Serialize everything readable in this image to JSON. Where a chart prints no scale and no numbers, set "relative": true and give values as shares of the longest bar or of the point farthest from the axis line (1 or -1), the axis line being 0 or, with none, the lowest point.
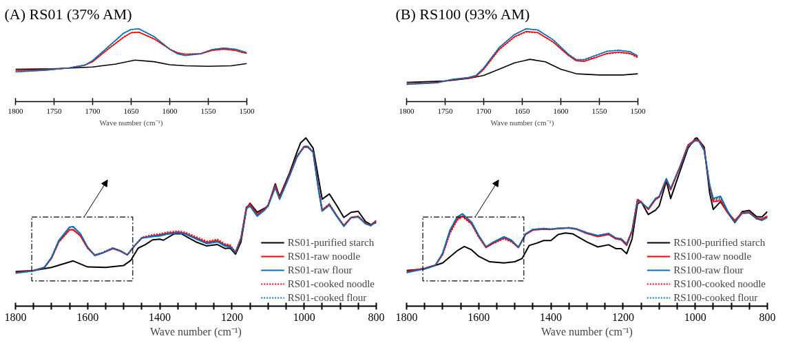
{
  "chart_data": [
    {
      "type": "line",
      "xlabel": "Wave number (cm⁻¹)",
      "relative": true,
      "legend": "bottom right",
      "xlim": [
        1800,
        800
      ],
      "xticks": [
        1800,
        {
          "value": 1750,
          "label": null
        },
        {
          "value": 1700,
          "label": null
        },
        {
          "value": 1650,
          "label": null
        },
        1600,
        {
          "value": 1550,
          "label": null
        },
        {
          "value": 1500,
          "label": null
        },
        {
          "value": 1450,
          "label": null
        },
        1400,
        {
          "value": 1350,
          "label": null
        },
        {
          "value": 1300,
          "label": null
        },
        {
          "value": 1250,
          "label": null
        },
        1200,
        {
          "value": 1150,
          "label": null
        },
        {
          "value": 1100,
          "label": null
        },
        {
          "value": 1050,
          "label": null
        },
        1000,
        {
          "value": 950,
          "label": null
        },
        {
          "value": 900,
          "label": null
        },
        {
          "value": 850,
          "label": null
        },
        800
      ],
      "series": [
        {
          "name": "RS01-purified starch",
          "color": "#000000",
          "line_style": "solid",
          "x": [
            1800,
            1750,
            1700,
            1640,
            1600,
            1550,
            1500,
            1480,
            1460,
            1440,
            1420,
            1400,
            1390,
            1360,
            1340,
            1320,
            1300,
            1270,
            1240,
            1220,
            1205,
            1190,
            1175,
            1160,
            1150,
            1130,
            1110,
            1100,
            1080,
            1068,
            1040,
            1020,
            1010,
            995,
            975,
            960,
            950,
            930,
            910,
            890,
            870,
            850,
            830,
            815,
            800
          ],
          "values": [
            0.206,
            0.212,
            0.23,
            0.269,
            0.233,
            0.23,
            0.242,
            0.273,
            0.345,
            0.366,
            0.394,
            0.398,
            0.392,
            0.43,
            0.43,
            0.406,
            0.382,
            0.358,
            0.366,
            0.343,
            0.345,
            0.309,
            0.382,
            0.576,
            0.612,
            0.558,
            0.582,
            0.594,
            0.727,
            0.651,
            0.794,
            0.915,
            0.97,
            1.0,
            0.939,
            0.758,
            0.636,
            0.667,
            0.6,
            0.527,
            0.558,
            0.564,
            0.503,
            0.485,
            0.497
          ]
        },
        {
          "name": "RS01-raw noodle",
          "color": "#ff0000",
          "line_style": "solid",
          "x": [
            1800,
            1750,
            1720,
            1700,
            1680,
            1650,
            1640,
            1620,
            1600,
            1580,
            1560,
            1530,
            1510,
            1490,
            1470,
            1450,
            1420,
            1400,
            1380,
            1350,
            1330,
            1300,
            1270,
            1240,
            1220,
            1205,
            1190,
            1175,
            1160,
            1150,
            1130,
            1110,
            1100,
            1080,
            1068,
            1040,
            1020,
            1000,
            990,
            975,
            960,
            950,
            930,
            910,
            890,
            870,
            850,
            830,
            815,
            800
          ],
          "values": [
            0.2,
            0.212,
            0.23,
            0.285,
            0.382,
            0.455,
            0.455,
            0.418,
            0.345,
            0.303,
            0.315,
            0.342,
            0.327,
            0.305,
            0.358,
            0.406,
            0.418,
            0.424,
            0.433,
            0.44,
            0.433,
            0.406,
            0.379,
            0.39,
            0.364,
            0.358,
            0.321,
            0.406,
            0.588,
            0.606,
            0.545,
            0.576,
            0.6,
            0.715,
            0.642,
            0.782,
            0.891,
            0.945,
            0.945,
            0.915,
            0.697,
            0.57,
            0.606,
            0.539,
            0.479,
            0.527,
            0.533,
            0.491,
            0.481,
            0.509
          ]
        },
        {
          "name": "RS01-raw flour",
          "color": "#0070c0",
          "line_style": "solid",
          "x": [
            1800,
            1750,
            1720,
            1700,
            1680,
            1650,
            1640,
            1620,
            1600,
            1580,
            1560,
            1530,
            1510,
            1490,
            1470,
            1450,
            1420,
            1400,
            1380,
            1350,
            1330,
            1300,
            1270,
            1240,
            1220,
            1205,
            1190,
            1175,
            1160,
            1150,
            1130,
            1110,
            1100,
            1080,
            1068,
            1040,
            1020,
            1000,
            990,
            975,
            960,
            950,
            930,
            910,
            890,
            870,
            850,
            830,
            815,
            800
          ],
          "values": [
            0.196,
            0.21,
            0.23,
            0.29,
            0.39,
            0.47,
            0.473,
            0.43,
            0.35,
            0.3,
            0.315,
            0.345,
            0.33,
            0.305,
            0.36,
            0.404,
            0.414,
            0.418,
            0.428,
            0.435,
            0.43,
            0.4,
            0.372,
            0.382,
            0.358,
            0.352,
            0.318,
            0.4,
            0.58,
            0.595,
            0.535,
            0.57,
            0.595,
            0.705,
            0.635,
            0.775,
            0.885,
            0.95,
            0.95,
            0.915,
            0.69,
            0.565,
            0.6,
            0.535,
            0.475,
            0.525,
            0.53,
            0.49,
            0.478,
            0.505
          ]
        },
        {
          "name": "RS01-cooked noodle",
          "color": "#ff0000",
          "line_style": "dotted",
          "x": [
            1800,
            1750,
            1720,
            1700,
            1680,
            1650,
            1640,
            1620,
            1600,
            1580,
            1560,
            1530,
            1510,
            1490,
            1470,
            1450,
            1420,
            1400,
            1380,
            1350,
            1330,
            1300,
            1270,
            1240,
            1220,
            1205,
            1190,
            1175,
            1160,
            1150,
            1130,
            1110,
            1100,
            1080,
            1068,
            1040,
            1020,
            1000,
            990,
            975,
            960,
            950,
            930,
            910,
            890,
            870,
            850,
            830,
            815,
            800
          ],
          "values": [
            0.2,
            0.212,
            0.23,
            0.285,
            0.38,
            0.452,
            0.452,
            0.418,
            0.345,
            0.305,
            0.318,
            0.345,
            0.33,
            0.305,
            0.36,
            0.408,
            0.425,
            0.43,
            0.44,
            0.447,
            0.44,
            0.413,
            0.386,
            0.397,
            0.371,
            0.364,
            0.321,
            0.406,
            0.588,
            0.606,
            0.548,
            0.578,
            0.602,
            0.718,
            0.645,
            0.785,
            0.895,
            0.95,
            0.95,
            0.918,
            0.7,
            0.572,
            0.608,
            0.54,
            0.48,
            0.528,
            0.535,
            0.493,
            0.483,
            0.51
          ]
        },
        {
          "name": "RS01-cooked flour",
          "color": "#0070c0",
          "line_style": "dotted",
          "x": [
            1800,
            1750,
            1720,
            1700,
            1680,
            1650,
            1640,
            1620,
            1600,
            1580,
            1560,
            1530,
            1510,
            1490,
            1470,
            1450,
            1420,
            1400,
            1380,
            1350,
            1330,
            1300,
            1270,
            1240,
            1220,
            1205,
            1190,
            1175,
            1160,
            1150,
            1130,
            1110,
            1100,
            1080,
            1068,
            1040,
            1020,
            1000,
            990,
            975,
            960,
            950,
            930,
            910,
            890,
            870,
            850,
            830,
            815,
            800
          ],
          "values": [
            0.196,
            0.21,
            0.23,
            0.29,
            0.388,
            0.468,
            0.47,
            0.43,
            0.35,
            0.302,
            0.318,
            0.347,
            0.33,
            0.307,
            0.36,
            0.406,
            0.418,
            0.422,
            0.432,
            0.438,
            0.432,
            0.403,
            0.376,
            0.386,
            0.36,
            0.354,
            0.318,
            0.4,
            0.582,
            0.597,
            0.537,
            0.572,
            0.597,
            0.708,
            0.638,
            0.778,
            0.888,
            0.948,
            0.948,
            0.915,
            0.692,
            0.567,
            0.602,
            0.537,
            0.475,
            0.526,
            0.531,
            0.49,
            0.479,
            0.506
          ]
        }
      ]
    },
    {
      "type": "line",
      "title": "(A) RS01 (37% AM)",
      "xlabel": "Wave number (cm⁻¹)",
      "relative": true,
      "xlim": [
        1800,
        1500
      ],
      "xticks": [
        1800,
        1750,
        1700,
        1650,
        1600,
        1550,
        1500
      ],
      "series": [
        {
          "color": "#000000",
          "line_style": "solid",
          "x": [
            1800,
            1750,
            1700,
            1670,
            1645,
            1620,
            1600,
            1580,
            1550,
            1520,
            1500
          ],
          "values": [
            0.444,
            0.45,
            0.475,
            0.516,
            0.569,
            0.547,
            0.506,
            0.491,
            0.484,
            0.491,
            0.522
          ]
        },
        {
          "color": "#ff0000",
          "line_style": "solid",
          "x": [
            1800,
            1760,
            1730,
            1710,
            1700,
            1680,
            1660,
            1650,
            1640,
            1620,
            1600,
            1590,
            1580,
            1560,
            1545,
            1530,
            1515,
            1505,
            1500
          ],
          "values": [
            0.428,
            0.438,
            0.463,
            0.5,
            0.547,
            0.719,
            0.881,
            0.944,
            0.953,
            0.859,
            0.719,
            0.672,
            0.65,
            0.656,
            0.703,
            0.719,
            0.703,
            0.672,
            0.663
          ]
        },
        {
          "color": "#0070c0",
          "line_style": "solid",
          "x": [
            1800,
            1760,
            1730,
            1710,
            1700,
            1680,
            1660,
            1650,
            1640,
            1620,
            1600,
            1590,
            1580,
            1560,
            1545,
            1530,
            1515,
            1505,
            1500
          ],
          "values": [
            0.406,
            0.431,
            0.463,
            0.5,
            0.563,
            0.75,
            0.938,
            0.991,
            1.0,
            0.891,
            0.719,
            0.656,
            0.631,
            0.656,
            0.713,
            0.734,
            0.719,
            0.688,
            0.672
          ]
        },
        {
          "color": "#ff0000",
          "line_style": "dotted",
          "x": [
            1800,
            1760,
            1730,
            1710,
            1700,
            1680,
            1660,
            1650,
            1640,
            1620,
            1600,
            1590,
            1580,
            1560,
            1545,
            1530,
            1515,
            1505,
            1500
          ],
          "values": [
            0.425,
            0.436,
            0.463,
            0.503,
            0.55,
            0.722,
            0.884,
            0.947,
            0.955,
            0.862,
            0.72,
            0.672,
            0.652,
            0.658,
            0.705,
            0.722,
            0.706,
            0.675,
            0.665
          ]
        },
        {
          "color": "#0070c0",
          "line_style": "dotted",
          "x": [
            1800,
            1760,
            1730,
            1710,
            1700,
            1680,
            1660,
            1650,
            1640,
            1620,
            1600,
            1590,
            1580,
            1560,
            1545,
            1530,
            1515,
            1505,
            1500
          ],
          "values": [
            0.41,
            0.433,
            0.463,
            0.502,
            0.56,
            0.745,
            0.935,
            0.988,
            0.997,
            0.89,
            0.719,
            0.658,
            0.634,
            0.658,
            0.715,
            0.736,
            0.722,
            0.69,
            0.674
          ]
        }
      ]
    },
    {
      "type": "line",
      "xlabel": "Wave number (cm⁻¹)",
      "relative": true,
      "legend": "bottom right",
      "xlim": [
        1800,
        800
      ],
      "xticks": [
        1800,
        {
          "value": 1750,
          "label": null
        },
        {
          "value": 1700,
          "label": null
        },
        {
          "value": 1650,
          "label": null
        },
        1600,
        {
          "value": 1550,
          "label": null
        },
        {
          "value": 1500,
          "label": null
        },
        {
          "value": 1450,
          "label": null
        },
        1400,
        {
          "value": 1350,
          "label": null
        },
        {
          "value": 1300,
          "label": null
        },
        {
          "value": 1250,
          "label": null
        },
        1200,
        {
          "value": 1150,
          "label": null
        },
        {
          "value": 1100,
          "label": null
        },
        {
          "value": 1050,
          "label": null
        },
        1000,
        {
          "value": 950,
          "label": null
        },
        {
          "value": 900,
          "label": null
        },
        {
          "value": 850,
          "label": null
        },
        800
      ],
      "series": [
        {
          "name": "RS100-purified starch",
          "color": "#000000",
          "line_style": "solid",
          "x": [
            1800,
            1750,
            1700,
            1660,
            1640,
            1620,
            1600,
            1570,
            1530,
            1500,
            1480,
            1460,
            1440,
            1420,
            1400,
            1380,
            1360,
            1340,
            1320,
            1300,
            1270,
            1240,
            1220,
            1205,
            1190,
            1175,
            1160,
            1150,
            1130,
            1110,
            1100,
            1080,
            1068,
            1040,
            1020,
            1000,
            995,
            975,
            960,
            950,
            930,
            910,
            890,
            870,
            850,
            830,
            815,
            800
          ],
          "values": [
            0.212,
            0.221,
            0.257,
            0.329,
            0.355,
            0.335,
            0.296,
            0.264,
            0.257,
            0.264,
            0.283,
            0.361,
            0.374,
            0.39,
            0.39,
            0.426,
            0.435,
            0.43,
            0.406,
            0.381,
            0.352,
            0.365,
            0.342,
            0.342,
            0.312,
            0.4,
            0.608,
            0.621,
            0.545,
            0.571,
            0.595,
            0.744,
            0.64,
            0.816,
            0.939,
            0.997,
            1.0,
            0.945,
            0.673,
            0.575,
            0.621,
            0.556,
            0.497,
            0.562,
            0.569,
            0.532,
            0.53,
            0.562
          ]
        },
        {
          "name": "RS100-raw noodle",
          "color": "#ff0000",
          "line_style": "solid",
          "x": [
            1800,
            1750,
            1720,
            1700,
            1680,
            1660,
            1645,
            1620,
            1600,
            1580,
            1560,
            1530,
            1510,
            1490,
            1470,
            1450,
            1420,
            1400,
            1380,
            1350,
            1330,
            1300,
            1270,
            1240,
            1220,
            1205,
            1190,
            1175,
            1160,
            1150,
            1130,
            1110,
            1100,
            1080,
            1068,
            1040,
            1020,
            1000,
            990,
            975,
            960,
            950,
            930,
            910,
            890,
            870,
            850,
            830,
            815,
            800
          ],
          "values": [
            0.205,
            0.225,
            0.244,
            0.309,
            0.439,
            0.517,
            0.536,
            0.491,
            0.413,
            0.348,
            0.374,
            0.406,
            0.387,
            0.348,
            0.426,
            0.452,
            0.458,
            0.456,
            0.461,
            0.465,
            0.458,
            0.432,
            0.413,
            0.426,
            0.4,
            0.394,
            0.361,
            0.445,
            0.634,
            0.621,
            0.575,
            0.634,
            0.647,
            0.751,
            0.692,
            0.842,
            0.958,
            0.99,
            0.987,
            0.931,
            0.712,
            0.621,
            0.627,
            0.556,
            0.51,
            0.556,
            0.558,
            0.523,
            0.517,
            0.536
          ]
        },
        {
          "name": "RS100-raw flour",
          "color": "#0070c0",
          "line_style": "solid",
          "x": [
            1800,
            1750,
            1720,
            1700,
            1680,
            1660,
            1645,
            1620,
            1600,
            1580,
            1560,
            1530,
            1510,
            1490,
            1470,
            1450,
            1420,
            1400,
            1380,
            1350,
            1330,
            1300,
            1270,
            1240,
            1220,
            1205,
            1190,
            1175,
            1160,
            1150,
            1130,
            1110,
            1100,
            1080,
            1068,
            1040,
            1020,
            1000,
            990,
            975,
            960,
            950,
            930,
            910,
            890,
            870,
            850,
            830,
            815,
            800
          ],
          "values": [
            0.2,
            0.222,
            0.244,
            0.315,
            0.45,
            0.53,
            0.549,
            0.5,
            0.42,
            0.352,
            0.38,
            0.413,
            0.393,
            0.35,
            0.43,
            0.456,
            0.462,
            0.458,
            0.463,
            0.466,
            0.46,
            0.436,
            0.42,
            0.432,
            0.405,
            0.4,
            0.37,
            0.45,
            0.625,
            0.615,
            0.58,
            0.64,
            0.652,
            0.758,
            0.7,
            0.84,
            0.95,
            0.985,
            0.982,
            0.925,
            0.72,
            0.64,
            0.653,
            0.565,
            0.5,
            0.552,
            0.555,
            0.52,
            0.51,
            0.528
          ]
        },
        {
          "name": "RS100-cooked noodle",
          "color": "#ff0000",
          "line_style": "dotted",
          "x": [
            1800,
            1750,
            1720,
            1700,
            1680,
            1660,
            1645,
            1620,
            1600,
            1580,
            1560,
            1530,
            1510,
            1490,
            1470,
            1450,
            1420,
            1400,
            1380,
            1350,
            1330,
            1300,
            1270,
            1240,
            1220,
            1205,
            1190,
            1175,
            1160,
            1150,
            1130,
            1110,
            1100,
            1080,
            1068,
            1040,
            1020,
            1000,
            990,
            975,
            960,
            950,
            930,
            910,
            890,
            870,
            850,
            830,
            815,
            800
          ],
          "values": [
            0.205,
            0.225,
            0.244,
            0.305,
            0.43,
            0.51,
            0.53,
            0.488,
            0.41,
            0.35,
            0.372,
            0.4,
            0.382,
            0.35,
            0.428,
            0.453,
            0.459,
            0.457,
            0.462,
            0.466,
            0.459,
            0.433,
            0.415,
            0.428,
            0.402,
            0.396,
            0.364,
            0.447,
            0.63,
            0.618,
            0.576,
            0.636,
            0.648,
            0.752,
            0.694,
            0.84,
            0.955,
            0.988,
            0.985,
            0.93,
            0.712,
            0.63,
            0.637,
            0.556,
            0.505,
            0.552,
            0.556,
            0.52,
            0.514,
            0.53
          ]
        },
        {
          "name": "RS100-cooked flour",
          "color": "#0070c0",
          "line_style": "dotted",
          "x": [
            1800,
            1750,
            1720,
            1700,
            1680,
            1660,
            1645,
            1620,
            1600,
            1580,
            1560,
            1530,
            1510,
            1490,
            1470,
            1450,
            1420,
            1400,
            1380,
            1350,
            1330,
            1300,
            1270,
            1240,
            1220,
            1205,
            1190,
            1175,
            1160,
            1150,
            1130,
            1110,
            1100,
            1080,
            1068,
            1040,
            1020,
            1000,
            990,
            975,
            960,
            950,
            930,
            910,
            890,
            870,
            850,
            830,
            815,
            800
          ],
          "values": [
            0.2,
            0.222,
            0.244,
            0.313,
            0.448,
            0.528,
            0.546,
            0.5,
            0.42,
            0.354,
            0.38,
            0.41,
            0.392,
            0.352,
            0.43,
            0.456,
            0.462,
            0.458,
            0.463,
            0.466,
            0.46,
            0.436,
            0.42,
            0.432,
            0.405,
            0.4,
            0.37,
            0.45,
            0.625,
            0.615,
            0.58,
            0.64,
            0.652,
            0.755,
            0.698,
            0.838,
            0.95,
            0.984,
            0.981,
            0.925,
            0.718,
            0.635,
            0.645,
            0.56,
            0.5,
            0.552,
            0.555,
            0.52,
            0.512,
            0.528
          ]
        }
      ]
    },
    {
      "type": "line",
      "title": "(B) RS100 (93% AM)",
      "xlabel": "Wave number (cm⁻¹)",
      "relative": true,
      "xlim": [
        1800,
        1500
      ],
      "xticks": [
        1800,
        1750,
        1700,
        1650,
        1600,
        1550,
        1500
      ],
      "series": [
        {
          "color": "#000000",
          "line_style": "solid",
          "x": [
            1800,
            1750,
            1720,
            1700,
            1680,
            1660,
            1640,
            1620,
            1600,
            1580,
            1550,
            1520,
            1500
          ],
          "values": [
            0.264,
            0.282,
            0.316,
            0.359,
            0.445,
            0.532,
            0.58,
            0.546,
            0.445,
            0.382,
            0.365,
            0.365,
            0.382
          ]
        },
        {
          "color": "#ff0000",
          "line_style": "solid",
          "x": [
            1800,
            1760,
            1740,
            1720,
            1710,
            1700,
            1680,
            1660,
            1645,
            1630,
            1610,
            1590,
            1580,
            1570,
            1555,
            1540,
            1525,
            1510,
            1500
          ],
          "values": [
            0.244,
            0.264,
            0.302,
            0.322,
            0.345,
            0.445,
            0.718,
            0.891,
            0.963,
            0.948,
            0.819,
            0.632,
            0.56,
            0.552,
            0.603,
            0.661,
            0.681,
            0.661,
            0.609
          ]
        },
        {
          "color": "#0070c0",
          "line_style": "solid",
          "x": [
            1800,
            1760,
            1740,
            1720,
            1710,
            1700,
            1680,
            1660,
            1645,
            1630,
            1610,
            1590,
            1580,
            1570,
            1555,
            1540,
            1525,
            1510,
            1500
          ],
          "values": [
            0.238,
            0.259,
            0.307,
            0.33,
            0.359,
            0.46,
            0.741,
            0.92,
            1.0,
            0.983,
            0.848,
            0.647,
            0.575,
            0.575,
            0.632,
            0.69,
            0.704,
            0.684,
            0.626
          ]
        },
        {
          "color": "#ff0000",
          "line_style": "dotted",
          "x": [
            1800,
            1760,
            1740,
            1720,
            1710,
            1700,
            1680,
            1660,
            1645,
            1630,
            1610,
            1590,
            1580,
            1570,
            1555,
            1540,
            1525,
            1510,
            1500
          ],
          "values": [
            0.24,
            0.262,
            0.3,
            0.32,
            0.345,
            0.44,
            0.71,
            0.885,
            0.955,
            0.945,
            0.815,
            0.635,
            0.565,
            0.56,
            0.61,
            0.655,
            0.672,
            0.655,
            0.6
          ]
        },
        {
          "color": "#0070c0",
          "line_style": "dotted",
          "x": [
            1800,
            1760,
            1740,
            1720,
            1710,
            1700,
            1680,
            1660,
            1645,
            1630,
            1610,
            1590,
            1580,
            1570,
            1555,
            1540,
            1525,
            1510,
            1500
          ],
          "values": [
            0.236,
            0.258,
            0.306,
            0.33,
            0.36,
            0.462,
            0.744,
            0.922,
            0.998,
            0.985,
            0.85,
            0.65,
            0.578,
            0.578,
            0.635,
            0.692,
            0.706,
            0.686,
            0.628
          ]
        }
      ]
    }
  ]
}
